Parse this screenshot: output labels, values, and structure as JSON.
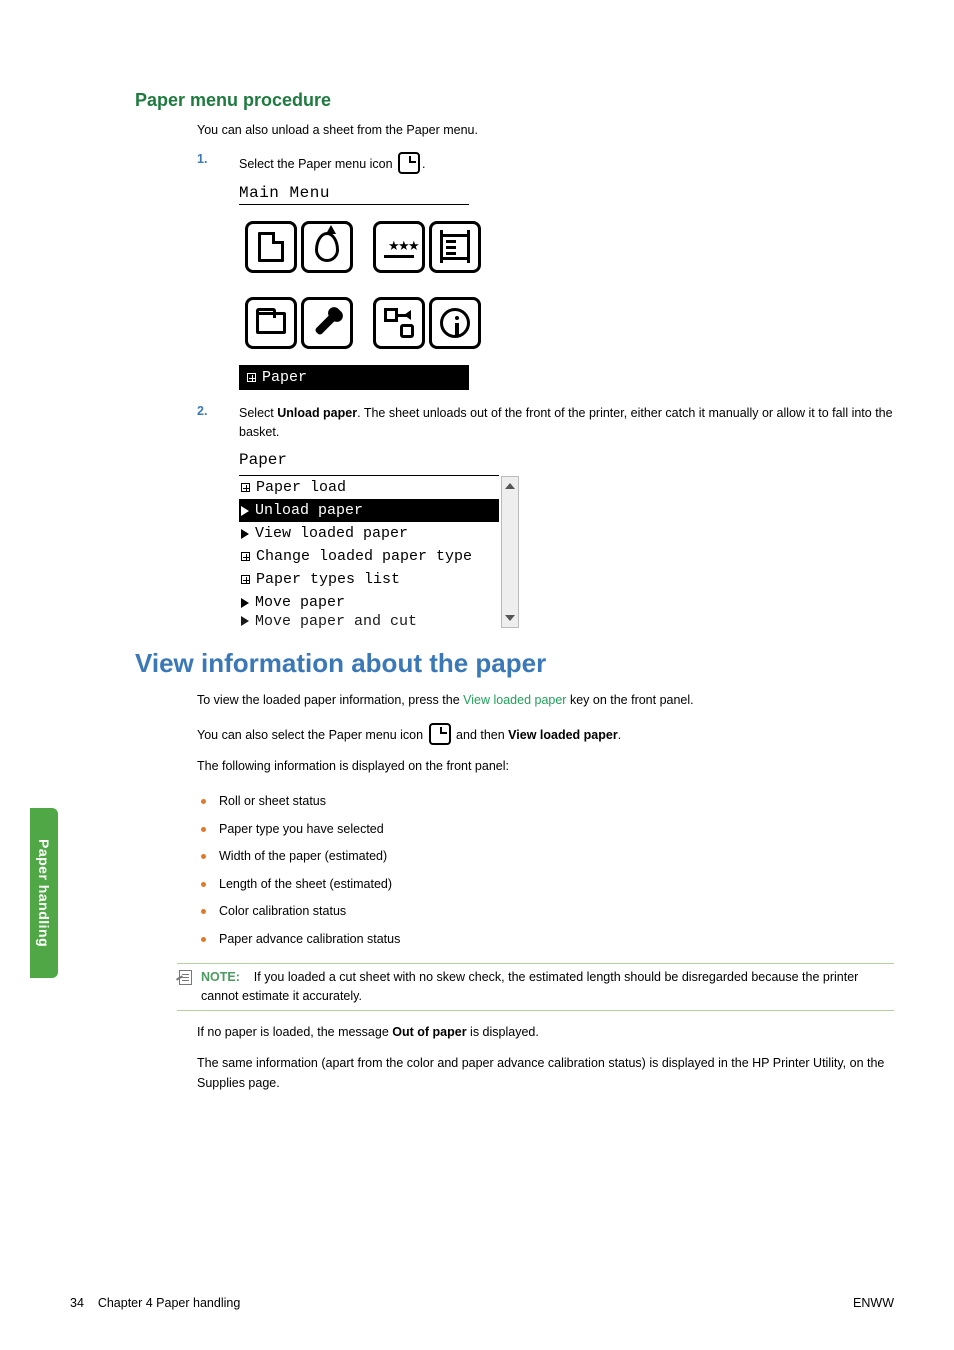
{
  "side_tab": "Paper handling",
  "h2": "Paper menu procedure",
  "intro1": "You can also unload a sheet from the Paper menu.",
  "steps": {
    "s1_num": "1.",
    "s1_text_a": "Select the Paper menu icon ",
    "s1_text_b": ".",
    "s2_num": "2.",
    "s2_text_a": "Select ",
    "s2_bold": "Unload paper",
    "s2_text_b": ". The sheet unloads out of the front of the printer, either catch it manually or allow it to fall into the basket."
  },
  "main_menu": {
    "title": "Main Menu",
    "status": "Paper"
  },
  "paper_panel": {
    "title": "Paper",
    "items": [
      {
        "label": "Paper load",
        "kind": "box"
      },
      {
        "label": "Unload paper",
        "kind": "tri",
        "selected": true
      },
      {
        "label": "View loaded paper",
        "kind": "tri"
      },
      {
        "label": "Change loaded paper type",
        "kind": "box"
      },
      {
        "label": "Paper types list",
        "kind": "box"
      },
      {
        "label": "Move paper",
        "kind": "tri"
      },
      {
        "label": "Move paper and cut",
        "kind": "tri",
        "cut": true
      }
    ]
  },
  "h1": "View information about the paper",
  "view": {
    "p1_a": "To view the loaded paper information, press the ",
    "p1_link": "View loaded paper",
    "p1_b": " key on the front panel.",
    "p2_a": "You can also select the Paper menu icon ",
    "p2_b": " and then ",
    "p2_bold": "View loaded paper",
    "p2_c": ".",
    "p3": "The following information is displayed on the front panel:",
    "bullets": [
      "Roll or sheet status",
      "Paper type you have selected",
      "Width of the paper (estimated)",
      "Length of the sheet (estimated)",
      "Color calibration status",
      "Paper advance calibration status"
    ],
    "note_prefix": "NOTE:",
    "note_text": "If you loaded a cut sheet with no skew check, the estimated length should be disregarded because the printer cannot estimate it accurately.",
    "p4_a": "If no paper is loaded, the message ",
    "p4_bold": "Out of paper",
    "p4_b": " is displayed.",
    "p5": "The same information (apart from the color and paper advance calibration status) is displayed in the HP Printer Utility, on the Supplies page."
  },
  "footer": {
    "left_page": "34",
    "left_text": "Chapter 4   Paper handling",
    "right": "ENWW"
  }
}
